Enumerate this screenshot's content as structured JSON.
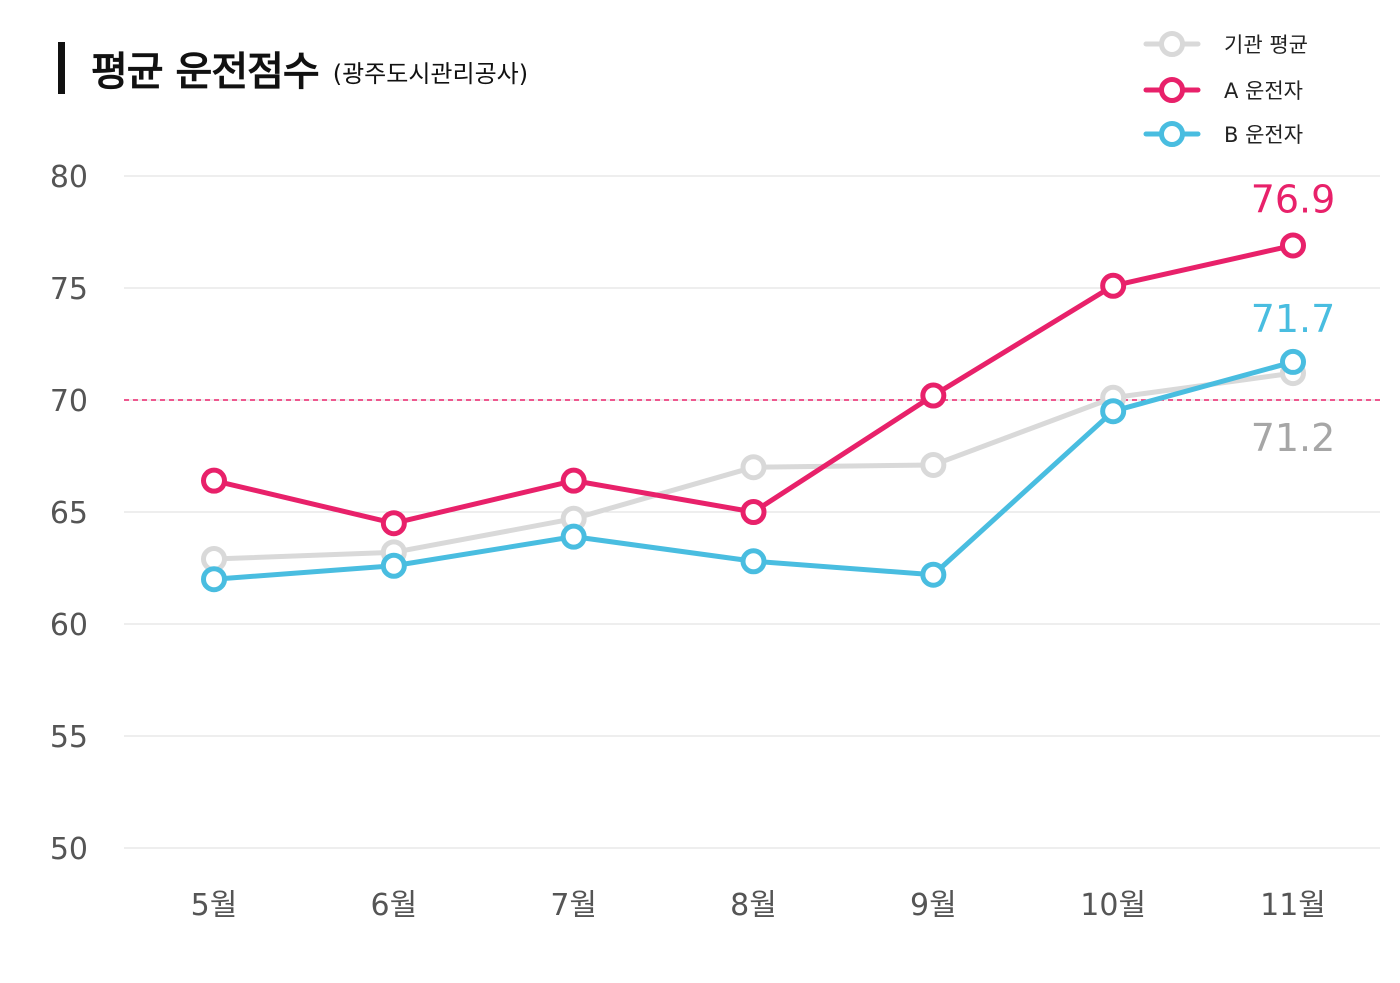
{
  "title": "평균 운전점수",
  "subtitle": "(광주도시관리공사)",
  "chart_data": {
    "type": "line",
    "categories": [
      "5월",
      "6월",
      "7월",
      "8월",
      "9월",
      "10월",
      "11월"
    ],
    "ylim": [
      50,
      80
    ],
    "yticks": [
      "50",
      "55",
      "60",
      "65",
      "70",
      "75",
      "80"
    ],
    "grid": true,
    "legend_position": "top-right",
    "reference_line": {
      "value": 70,
      "color": "#e8216a",
      "style": "dashed"
    },
    "series": [
      {
        "name": "기관 평균",
        "color": "#d9d9d9",
        "values": [
          62.9,
          63.2,
          64.7,
          67.0,
          67.1,
          70.1,
          71.2
        ],
        "end_label": "71.2",
        "end_label_color": "#a6a6a6"
      },
      {
        "name": "A 운전자",
        "color": "#e8216a",
        "values": [
          66.4,
          64.5,
          66.4,
          65.0,
          70.2,
          75.1,
          76.9
        ],
        "end_label": "76.9",
        "end_label_color": "#e8216a"
      },
      {
        "name": "B 운전자",
        "color": "#49bde0",
        "values": [
          62.0,
          62.6,
          63.9,
          62.8,
          62.2,
          69.5,
          71.7
        ],
        "end_label": "71.7",
        "end_label_color": "#49bde0"
      }
    ]
  }
}
